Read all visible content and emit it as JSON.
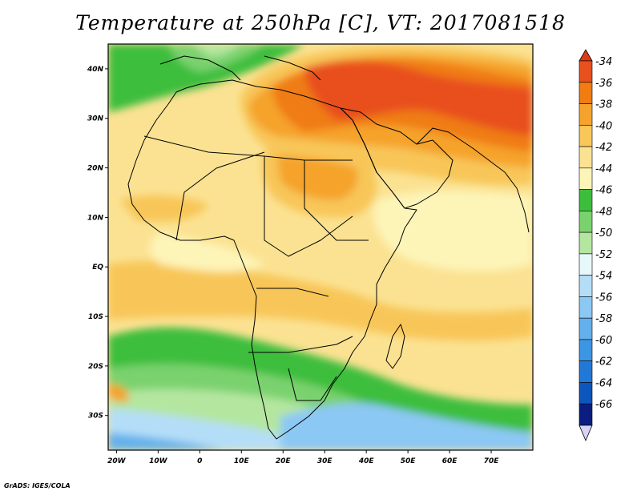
{
  "title": "Temperature at 250hPa [C], VT: 2017081518",
  "credit": "GrADS: IGES/COLA",
  "map": {
    "lon_range": [
      -22,
      80
    ],
    "lat_range": [
      -37,
      45
    ],
    "lon_ticks": [
      {
        "value": -20,
        "label": "20W"
      },
      {
        "value": -10,
        "label": "10W"
      },
      {
        "value": 0,
        "label": "0"
      },
      {
        "value": 10,
        "label": "10E"
      },
      {
        "value": 20,
        "label": "20E"
      },
      {
        "value": 30,
        "label": "30E"
      },
      {
        "value": 40,
        "label": "40E"
      },
      {
        "value": 50,
        "label": "50E"
      },
      {
        "value": 60,
        "label": "60E"
      },
      {
        "value": 70,
        "label": "70E"
      }
    ],
    "lat_ticks": [
      {
        "value": 40,
        "label": "40N"
      },
      {
        "value": 30,
        "label": "30N"
      },
      {
        "value": 20,
        "label": "20N"
      },
      {
        "value": 10,
        "label": "10N"
      },
      {
        "value": 0,
        "label": "EQ"
      },
      {
        "value": -10,
        "label": "10S"
      },
      {
        "value": -20,
        "label": "20S"
      },
      {
        "value": -30,
        "label": "30S"
      }
    ]
  },
  "colorbar": {
    "levels": [
      "-34",
      "-36",
      "-38",
      "-40",
      "-42",
      "-44",
      "-46",
      "-48",
      "-50",
      "-52",
      "-54",
      "-56",
      "-58",
      "-60",
      "-62",
      "-64",
      "-66"
    ],
    "colors": [
      "#e8501e",
      "#f07c12",
      "#f5a32c",
      "#f8c659",
      "#fbe292",
      "#fdf4b8",
      "#3cbe3c",
      "#7ad26e",
      "#b4e6a0",
      "#e6f8fa",
      "#b4def8",
      "#8cc8f4",
      "#64b0ec",
      "#3c96e4",
      "#2278d6",
      "#0c56be",
      "#0a1e82"
    ],
    "over_color": "#e03a12",
    "under_color": "#d8d4f8"
  }
}
